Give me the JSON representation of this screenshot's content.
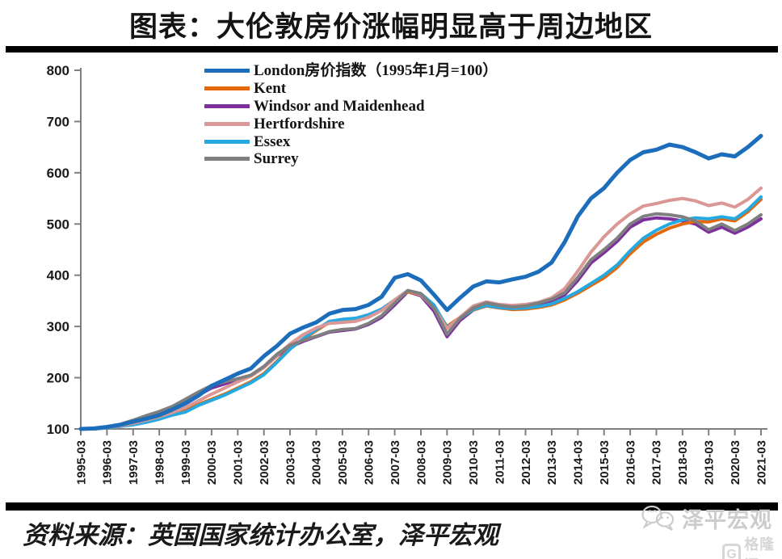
{
  "title": "图表：大伦敦房价涨幅明显高于周边地区",
  "source": "资料来源：英国国家统计办公室，泽平宏观",
  "watermark": {
    "wechat_label": "泽平宏观",
    "gelonghui_icon_letter": "G",
    "gelonghui_label": "格隆汇",
    "color": "#cccccc"
  },
  "chart_data": {
    "type": "line",
    "title": "图表：大伦敦房价涨幅明显高于周边地区",
    "xlabel": "",
    "ylabel": "",
    "ylim": [
      100,
      800
    ],
    "y_ticks": [
      100,
      200,
      300,
      400,
      500,
      600,
      700,
      800
    ],
    "grid": false,
    "legend_position": "top-center",
    "axis_color": "#7f7f7f",
    "tick_label_color": "#1a1a1a",
    "x_tick_labels": [
      "1995-03",
      "1996-03",
      "1997-03",
      "1998-03",
      "1999-03",
      "2000-03",
      "2001-03",
      "2002-03",
      "2003-03",
      "2004-03",
      "2005-03",
      "2006-03",
      "2007-03",
      "2008-03",
      "2009-03",
      "2010-03",
      "2011-03",
      "2012-03",
      "2013-03",
      "2014-03",
      "2015-03",
      "2016-03",
      "2017-03",
      "2018-03",
      "2019-03",
      "2020-03",
      "2021-03"
    ],
    "x_tick_years": [
      1995.25,
      1996.25,
      1997.25,
      1998.25,
      1999.25,
      2000.25,
      2001.25,
      2002.25,
      2003.25,
      2004.25,
      2005.25,
      2006.25,
      2007.25,
      2008.25,
      2009.25,
      2010.25,
      2011.25,
      2012.25,
      2013.25,
      2014.25,
      2015.25,
      2016.25,
      2017.25,
      2018.25,
      2019.25,
      2020.25,
      2021.25
    ],
    "x": [
      1995.25,
      1995.75,
      1996.25,
      1996.75,
      1997.25,
      1997.75,
      1998.25,
      1998.75,
      1999.25,
      1999.75,
      2000.25,
      2000.75,
      2001.25,
      2001.75,
      2002.25,
      2002.75,
      2003.25,
      2003.75,
      2004.25,
      2004.75,
      2005.25,
      2005.75,
      2006.25,
      2006.75,
      2007.25,
      2007.75,
      2008.25,
      2008.75,
      2009.25,
      2009.75,
      2010.25,
      2010.75,
      2011.25,
      2011.75,
      2012.25,
      2012.75,
      2013.25,
      2013.75,
      2014.25,
      2014.75,
      2015.25,
      2015.75,
      2016.25,
      2016.75,
      2017.25,
      2017.75,
      2018.25,
      2018.75,
      2019.25,
      2019.75,
      2020.25,
      2020.75,
      2021.25
    ],
    "draw_order": [
      2,
      1,
      4,
      3,
      5,
      0
    ],
    "series": [
      {
        "id": "london",
        "name": "London房价指数（1995年1月=100）",
        "color": "#1d6dbd",
        "line_width": 5,
        "values": [
          100,
          101,
          104,
          108,
          114,
          120,
          127,
          138,
          150,
          165,
          184,
          196,
          208,
          218,
          242,
          262,
          286,
          298,
          308,
          325,
          332,
          334,
          342,
          358,
          395,
          402,
          390,
          362,
          332,
          356,
          378,
          388,
          386,
          392,
          397,
          407,
          425,
          465,
          515,
          550,
          570,
          600,
          625,
          640,
          645,
          655,
          650,
          640,
          628,
          636,
          632,
          650,
          672
        ]
      },
      {
        "id": "kent",
        "name": "Kent",
        "color": "#e5690a",
        "line_width": 4,
        "values": [
          100,
          100,
          102,
          105,
          109,
          114,
          120,
          128,
          136,
          148,
          158,
          168,
          180,
          192,
          208,
          232,
          258,
          275,
          292,
          308,
          313,
          315,
          322,
          333,
          350,
          368,
          362,
          338,
          300,
          318,
          332,
          340,
          336,
          333,
          334,
          337,
          342,
          352,
          365,
          380,
          395,
          415,
          442,
          465,
          480,
          492,
          500,
          505,
          504,
          510,
          506,
          524,
          548
        ]
      },
      {
        "id": "windsor-and-maidenhead",
        "name": "Windsor and Maidenhead",
        "color": "#7d2f9e",
        "line_width": 4,
        "values": [
          100,
          100,
          103,
          107,
          114,
          122,
          130,
          140,
          152,
          166,
          180,
          188,
          196,
          204,
          220,
          243,
          260,
          271,
          280,
          289,
          292,
          295,
          304,
          318,
          342,
          368,
          360,
          330,
          280,
          312,
          332,
          342,
          338,
          335,
          337,
          342,
          349,
          362,
          390,
          424,
          444,
          466,
          494,
          508,
          512,
          510,
          506,
          500,
          484,
          494,
          482,
          494,
          510
        ]
      },
      {
        "id": "hertfordshire",
        "name": "Hertfordshire",
        "color": "#db9795",
        "line_width": 4,
        "values": [
          100,
          101,
          103,
          106,
          111,
          117,
          124,
          132,
          142,
          155,
          168,
          180,
          192,
          203,
          220,
          244,
          266,
          284,
          297,
          306,
          308,
          310,
          318,
          331,
          352,
          370,
          362,
          336,
          296,
          318,
          340,
          348,
          343,
          341,
          343,
          347,
          356,
          374,
          408,
          445,
          475,
          500,
          520,
          535,
          540,
          546,
          550,
          545,
          536,
          541,
          533,
          548,
          570
        ]
      },
      {
        "id": "essex",
        "name": "Essex",
        "color": "#25a9e0",
        "line_width": 4,
        "values": [
          100,
          100,
          102,
          105,
          108,
          113,
          119,
          127,
          133,
          146,
          156,
          166,
          178,
          190,
          206,
          230,
          256,
          276,
          294,
          310,
          314,
          316,
          323,
          334,
          352,
          370,
          364,
          342,
          298,
          316,
          333,
          341,
          337,
          335,
          336,
          339,
          344,
          355,
          368,
          384,
          400,
          420,
          448,
          472,
          488,
          500,
          508,
          512,
          510,
          514,
          510,
          528,
          553
        ]
      },
      {
        "id": "surrey",
        "name": "Surrey",
        "color": "#7f7f7f",
        "line_width": 4,
        "values": [
          100,
          101,
          104,
          109,
          117,
          126,
          134,
          144,
          158,
          172,
          185,
          192,
          198,
          205,
          222,
          246,
          263,
          273,
          281,
          290,
          294,
          296,
          306,
          321,
          346,
          370,
          364,
          336,
          285,
          316,
          336,
          346,
          341,
          338,
          340,
          346,
          353,
          366,
          396,
          430,
          450,
          472,
          500,
          515,
          520,
          518,
          514,
          506,
          489,
          500,
          487,
          500,
          518
        ]
      }
    ]
  }
}
